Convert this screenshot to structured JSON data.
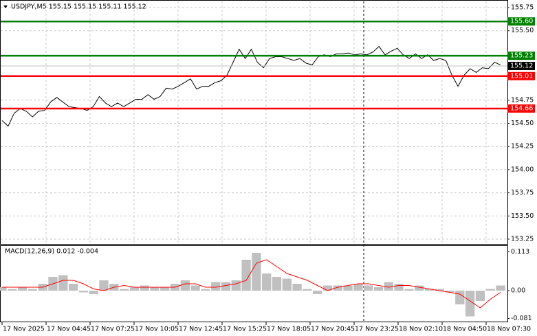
{
  "chart_data": [
    {
      "type": "line",
      "title": "USDJPY,M5  155.15 155.15 155.11 155.12",
      "ylim": [
        153.198,
        155.817
      ],
      "yticks": [
        155.75,
        {
          "value": 155.5,
          "label": "155.50"
        },
        154.75,
        {
          "value": 154.5,
          "label": "154.50"
        },
        154.25,
        {
          "value": 154.0,
          "label": "154.00"
        },
        153.75,
        {
          "value": 153.5,
          "label": "153.50"
        },
        153.25
      ],
      "grid": true,
      "series": [
        {
          "color": "#000000",
          "values": [
            154.53,
            154.47,
            154.61,
            154.66,
            154.63,
            154.57,
            154.63,
            154.64,
            154.73,
            154.78,
            154.73,
            154.68,
            154.67,
            154.66,
            154.64,
            154.68,
            154.79,
            154.72,
            154.68,
            154.72,
            154.68,
            154.72,
            154.76,
            154.76,
            154.81,
            154.76,
            154.79,
            154.88,
            154.87,
            154.9,
            154.94,
            154.98,
            154.87,
            154.9,
            154.9,
            154.94,
            154.96,
            155.02,
            155.16,
            155.3,
            155.2,
            155.3,
            155.16,
            155.1,
            155.2,
            155.22,
            155.22,
            155.2,
            155.18,
            155.2,
            155.15,
            155.13,
            155.22,
            155.24,
            155.22,
            155.25,
            155.25,
            155.26,
            155.24,
            155.25,
            155.24,
            155.27,
            155.33,
            155.24,
            155.28,
            155.31,
            155.24,
            155.2,
            155.25,
            155.2,
            155.24,
            155.18,
            155.2,
            155.18,
            155.02,
            154.9,
            155.02,
            155.09,
            155.05,
            155.1,
            155.09,
            155.16,
            155.13
          ]
        }
      ],
      "levels": [
        {
          "value": 155.6,
          "label": "155.60",
          "color": "#008000"
        },
        {
          "value": 155.23,
          "label": "155.23",
          "color": "#008000"
        },
        {
          "value": 155.01,
          "label": "155.01",
          "color": "#ff0000"
        },
        {
          "value": 154.66,
          "label": "154.66",
          "color": "#ff0000"
        }
      ],
      "current_price": {
        "value": 155.12,
        "label": "155.12"
      }
    },
    {
      "type": "macd",
      "title": "MACD(12,26,9) 0.012 -0.004",
      "ylim": [
        -0.09,
        0.13
      ],
      "yticks": [
        0.113,
        {
          "value": 0,
          "label": "0.00"
        },
        -0.081
      ],
      "histogram": {
        "color": "#c0c0c0",
        "values": [
          0.01,
          0.005,
          0.01,
          0.005,
          0.02,
          0.04,
          0.045,
          0.02,
          -0.005,
          -0.01,
          0.03,
          0.02,
          0.005,
          0.01,
          0.015,
          0.01,
          0.01,
          0.02,
          0.03,
          0.015,
          0.005,
          0.025,
          0.025,
          0.03,
          0.09,
          0.11,
          0.05,
          0.04,
          0.035,
          0.02,
          0.005,
          -0.01,
          0.015,
          0.015,
          0.015,
          0.02,
          0.015,
          0.01,
          0.025,
          0.02,
          0.005,
          0.015,
          0.005,
          0.005,
          -0.005,
          -0.04,
          -0.075,
          -0.03,
          0.005,
          0.015
        ]
      },
      "signal": {
        "color": "#ff0000",
        "values": [
          0.01,
          0.01,
          0.01,
          0.01,
          0.01,
          0.02,
          0.03,
          0.03,
          0.02,
          0.005,
          0.0,
          0.01,
          0.015,
          0.01,
          0.01,
          0.01,
          0.01,
          0.01,
          0.02,
          0.02,
          0.01,
          0.01,
          0.015,
          0.02,
          0.03,
          0.08,
          0.09,
          0.07,
          0.05,
          0.04,
          0.03,
          0.015,
          0.0,
          0.01,
          0.015,
          0.02,
          0.02,
          0.015,
          0.01,
          0.015,
          0.015,
          0.01,
          0.005,
          0.0,
          -0.005,
          -0.01,
          -0.03,
          -0.05,
          -0.025,
          -0.005
        ]
      },
      "x_tick_labels": [
        "17 Nov 2025",
        "17 Nov 04:45",
        "17 Nov 07:25",
        "17 Nov 10:05",
        "17 Nov 12:45",
        "17 Nov 15:25",
        "17 Nov 18:05",
        "17 Nov 20:45",
        "17 Nov 23:25",
        "18 Nov 02:10",
        "18 Nov 04:50",
        "18 Nov 07:30"
      ]
    }
  ]
}
